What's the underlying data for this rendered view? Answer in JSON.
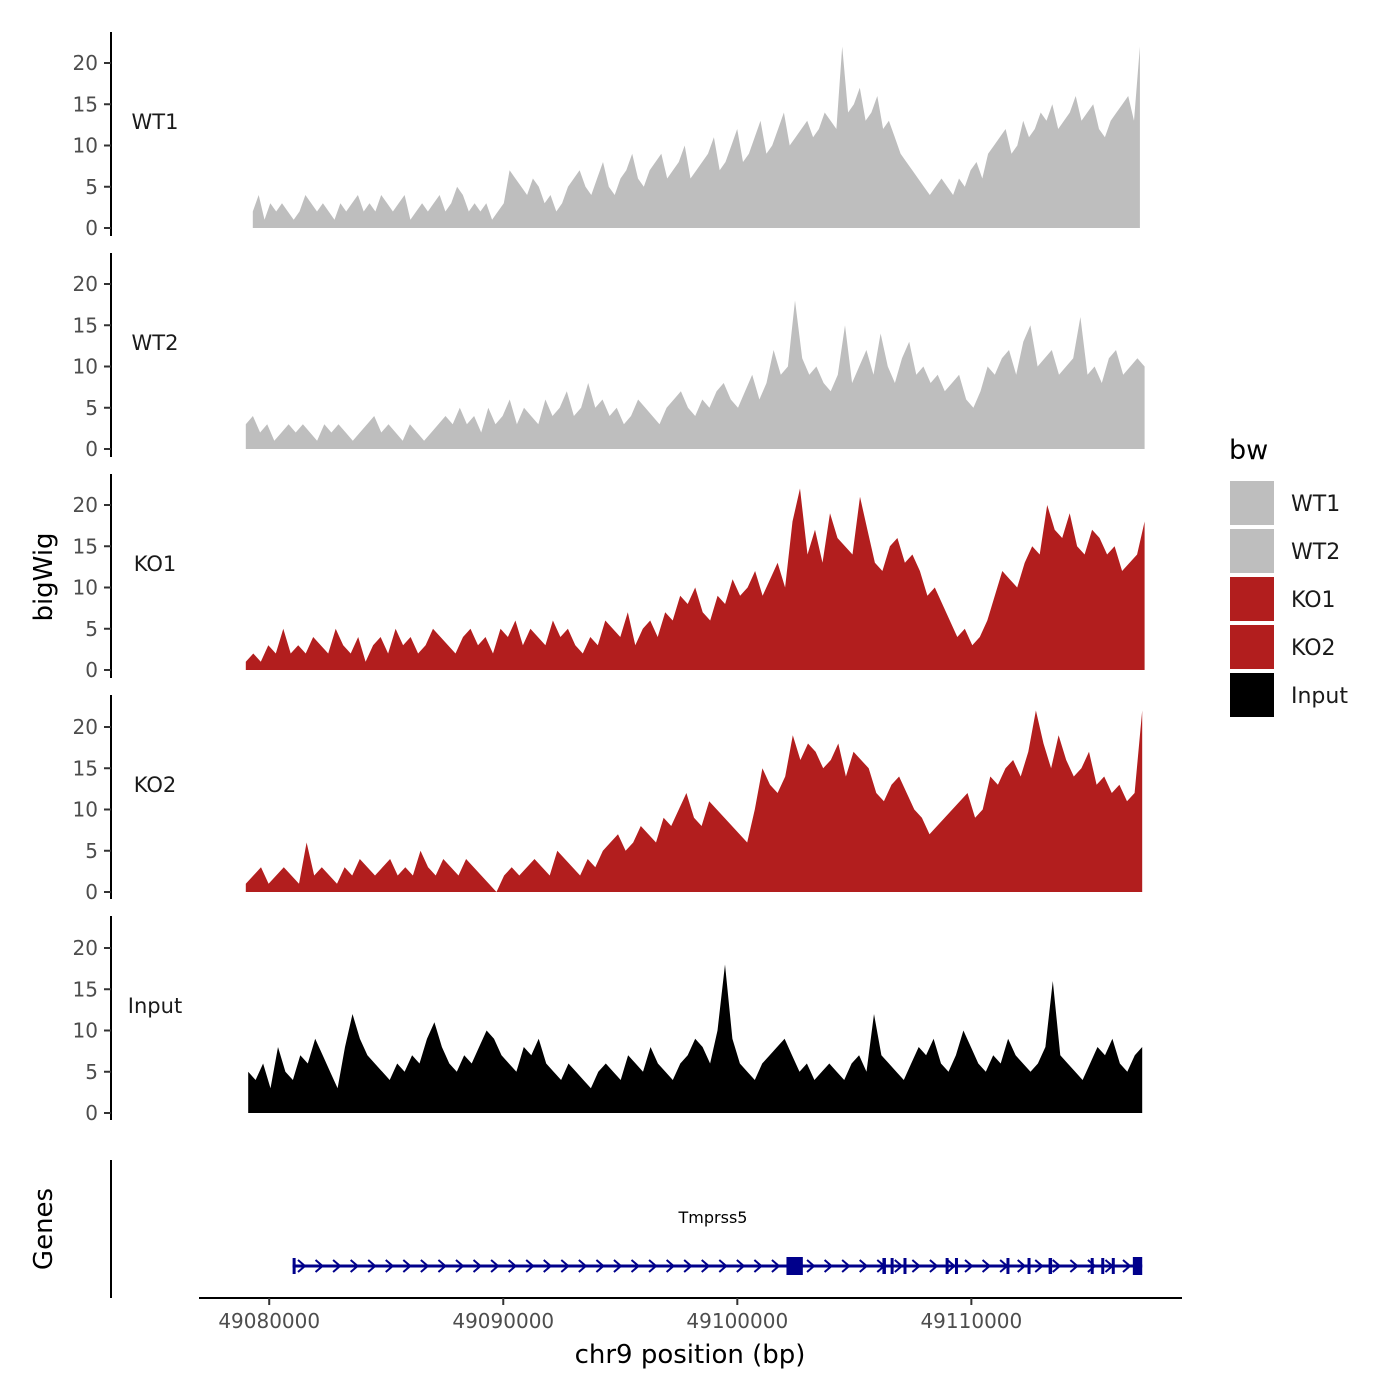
{
  "chart_data": {
    "type": "area",
    "ylabel": "bigWig",
    "xlabel": "chr9 position (bp)",
    "chromosome": "chr9",
    "region": [
      49079300,
      49117400
    ],
    "xlim": [
      49077000,
      49119000
    ],
    "ylim": [
      0,
      24
    ],
    "yticks": [
      0,
      5,
      10,
      15,
      20
    ],
    "xticks": [
      49080000,
      49090000,
      49100000,
      49110000
    ],
    "xtick_labels": [
      "49080000",
      "49090000",
      "49100000",
      "49110000"
    ],
    "legend": {
      "title": "bw",
      "placement": "right",
      "entries": [
        {
          "label": "WT1",
          "color": "#bebebe"
        },
        {
          "label": "WT2",
          "color": "#bebebe"
        },
        {
          "label": "KO1",
          "color": "#b21e1e"
        },
        {
          "label": "KO2",
          "color": "#b21e1e"
        },
        {
          "label": "Input",
          "color": "#000000"
        }
      ]
    },
    "series": [
      {
        "name": "WT1",
        "color": "#bebebe",
        "start": 49079300,
        "end": 49117200,
        "values": [
          2,
          4,
          1,
          3,
          2,
          3,
          2,
          1,
          2,
          4,
          3,
          2,
          3,
          2,
          1,
          3,
          2,
          3,
          4,
          2,
          3,
          2,
          4,
          3,
          2,
          3,
          4,
          1,
          2,
          3,
          2,
          3,
          4,
          2,
          3,
          5,
          4,
          2,
          3,
          2,
          3,
          1,
          2,
          3,
          7,
          6,
          5,
          4,
          6,
          5,
          3,
          4,
          2,
          3,
          5,
          6,
          7,
          5,
          4,
          6,
          8,
          5,
          4,
          6,
          7,
          9,
          6,
          5,
          7,
          8,
          9,
          6,
          7,
          8,
          10,
          6,
          7,
          8,
          9,
          11,
          7,
          8,
          10,
          12,
          8,
          9,
          11,
          13,
          9,
          10,
          12,
          14,
          10,
          11,
          12,
          13,
          11,
          12,
          14,
          13,
          12,
          22,
          14,
          15,
          17,
          13,
          14,
          16,
          12,
          13,
          11,
          9,
          8,
          7,
          6,
          5,
          4,
          5,
          6,
          5,
          4,
          6,
          5,
          7,
          8,
          6,
          9,
          10,
          11,
          12,
          9,
          10,
          13,
          11,
          12,
          14,
          13,
          15,
          12,
          13,
          14,
          16,
          13,
          14,
          15,
          12,
          11,
          13,
          14,
          15,
          16,
          13,
          22
        ]
      },
      {
        "name": "WT2",
        "color": "#bebebe",
        "start": 49079000,
        "end": 49117400,
        "values": [
          3,
          4,
          2,
          3,
          1,
          2,
          3,
          2,
          3,
          2,
          1,
          3,
          2,
          3,
          2,
          1,
          2,
          3,
          4,
          2,
          3,
          2,
          1,
          3,
          2,
          1,
          2,
          3,
          4,
          3,
          5,
          3,
          4,
          2,
          5,
          3,
          4,
          6,
          3,
          5,
          4,
          3,
          6,
          4,
          5,
          7,
          4,
          5,
          8,
          5,
          6,
          4,
          5,
          3,
          4,
          6,
          5,
          4,
          3,
          5,
          6,
          7,
          5,
          4,
          6,
          5,
          7,
          8,
          6,
          5,
          7,
          9,
          6,
          8,
          12,
          9,
          10,
          18,
          11,
          9,
          10,
          8,
          7,
          9,
          15,
          8,
          10,
          12,
          9,
          14,
          10,
          8,
          11,
          13,
          9,
          10,
          8,
          9,
          7,
          8,
          9,
          6,
          5,
          7,
          10,
          9,
          11,
          12,
          9,
          13,
          15,
          10,
          11,
          12,
          9,
          10,
          11,
          16,
          9,
          10,
          8,
          11,
          12,
          9,
          10,
          11,
          10
        ]
      },
      {
        "name": "KO1",
        "color": "#b21e1e",
        "start": 49079000,
        "end": 49117400,
        "values": [
          1,
          2,
          1,
          3,
          2,
          5,
          2,
          3,
          2,
          4,
          3,
          2,
          5,
          3,
          2,
          4,
          1,
          3,
          4,
          2,
          5,
          3,
          4,
          2,
          3,
          5,
          4,
          3,
          2,
          4,
          5,
          3,
          4,
          2,
          5,
          4,
          6,
          3,
          5,
          4,
          3,
          6,
          4,
          5,
          3,
          2,
          4,
          3,
          6,
          5,
          4,
          7,
          3,
          5,
          6,
          4,
          7,
          6,
          9,
          8,
          10,
          7,
          6,
          9,
          8,
          11,
          9,
          10,
          12,
          9,
          11,
          13,
          10,
          18,
          22,
          14,
          17,
          13,
          19,
          16,
          15,
          14,
          21,
          17,
          13,
          12,
          15,
          16,
          13,
          14,
          12,
          9,
          10,
          8,
          6,
          4,
          5,
          3,
          4,
          6,
          9,
          12,
          11,
          10,
          13,
          15,
          14,
          20,
          17,
          16,
          19,
          15,
          14,
          17,
          16,
          14,
          15,
          12,
          13,
          14,
          18
        ]
      },
      {
        "name": "KO2",
        "color": "#b21e1e",
        "start": 49079000,
        "end": 49117300,
        "values": [
          1,
          2,
          3,
          1,
          2,
          3,
          2,
          1,
          6,
          2,
          3,
          2,
          1,
          3,
          2,
          4,
          3,
          2,
          3,
          4,
          2,
          3,
          2,
          5,
          3,
          2,
          4,
          3,
          2,
          4,
          3,
          2,
          1,
          0,
          2,
          3,
          2,
          3,
          4,
          3,
          2,
          5,
          4,
          3,
          2,
          4,
          3,
          5,
          6,
          7,
          5,
          6,
          8,
          7,
          6,
          9,
          8,
          10,
          12,
          9,
          8,
          11,
          10,
          9,
          8,
          7,
          6,
          10,
          15,
          13,
          12,
          14,
          19,
          16,
          18,
          17,
          15,
          16,
          18,
          14,
          17,
          16,
          15,
          12,
          11,
          13,
          14,
          12,
          10,
          9,
          7,
          8,
          9,
          10,
          11,
          12,
          9,
          10,
          14,
          13,
          15,
          16,
          14,
          17,
          22,
          18,
          15,
          19,
          16,
          14,
          15,
          17,
          13,
          14,
          12,
          13,
          11,
          12,
          22
        ]
      },
      {
        "name": "Input",
        "color": "#000000",
        "start": 49079100,
        "end": 49117300,
        "values": [
          5,
          4,
          6,
          3,
          8,
          5,
          4,
          7,
          6,
          9,
          7,
          5,
          3,
          8,
          12,
          9,
          7,
          6,
          5,
          4,
          6,
          5,
          7,
          6,
          9,
          11,
          8,
          6,
          5,
          7,
          6,
          8,
          10,
          9,
          7,
          6,
          5,
          8,
          7,
          9,
          6,
          5,
          4,
          6,
          5,
          4,
          3,
          5,
          6,
          5,
          4,
          7,
          6,
          5,
          8,
          6,
          5,
          4,
          6,
          7,
          9,
          8,
          6,
          10,
          18,
          9,
          6,
          5,
          4,
          6,
          7,
          8,
          9,
          7,
          5,
          6,
          4,
          5,
          6,
          5,
          4,
          6,
          7,
          5,
          12,
          7,
          6,
          5,
          4,
          6,
          8,
          7,
          9,
          6,
          5,
          7,
          10,
          8,
          6,
          5,
          7,
          6,
          9,
          7,
          6,
          5,
          6,
          8,
          16,
          7,
          6,
          5,
          4,
          6,
          8,
          7,
          9,
          6,
          5,
          7,
          8
        ]
      }
    ]
  },
  "genes": {
    "title": "Genes",
    "gene_name": "Tmprss5",
    "color": "#00008b",
    "strand": "+",
    "start": 49081000,
    "end": 49117300,
    "exons": [
      {
        "start": 49081000,
        "end": 49081100
      },
      {
        "start": 49102100,
        "end": 49102800
      },
      {
        "start": 49106200,
        "end": 49106350
      },
      {
        "start": 49106550,
        "end": 49106650
      },
      {
        "start": 49107100,
        "end": 49107200
      },
      {
        "start": 49108900,
        "end": 49109000
      },
      {
        "start": 49109300,
        "end": 49109380
      },
      {
        "start": 49111500,
        "end": 49111550
      },
      {
        "start": 49112400,
        "end": 49112500
      },
      {
        "start": 49113300,
        "end": 49113450
      },
      {
        "start": 49115100,
        "end": 49115150
      },
      {
        "start": 49115550,
        "end": 49115650
      },
      {
        "start": 49116000,
        "end": 49116100
      },
      {
        "start": 49116900,
        "end": 49117300
      }
    ]
  }
}
